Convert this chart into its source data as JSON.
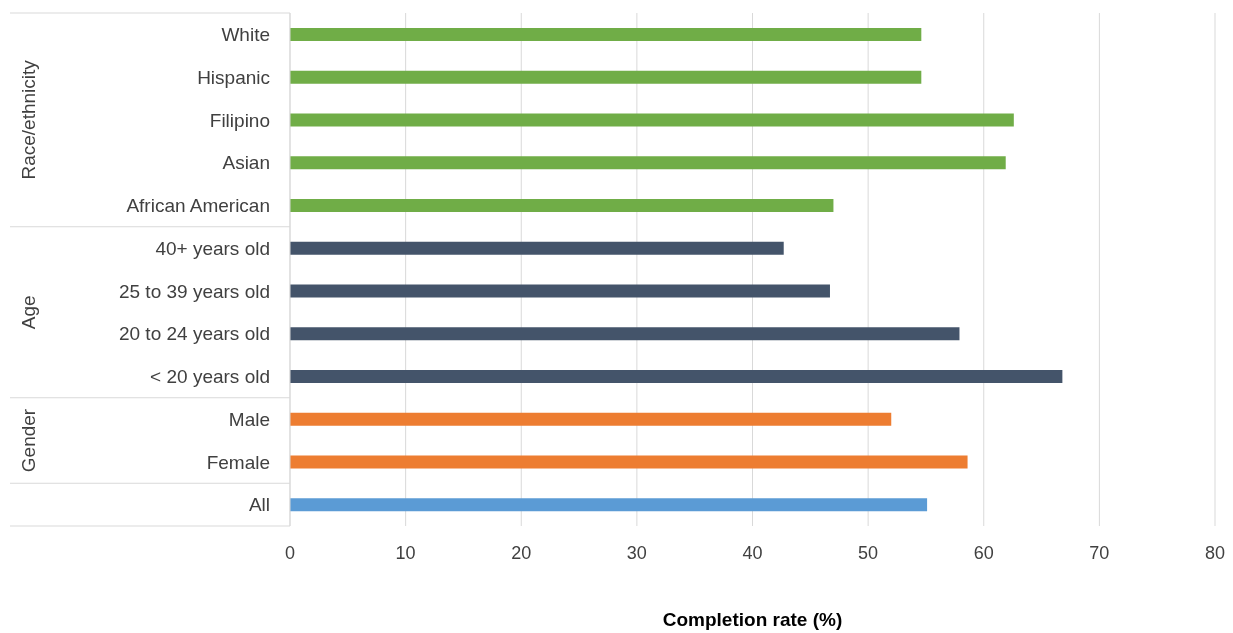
{
  "chart_data": {
    "type": "bar",
    "orientation": "horizontal",
    "xlabel": "Completion rate (%)",
    "categories": [
      "White",
      "Hispanic",
      "Filipino",
      "Asian",
      "African American",
      "40+ years old",
      "25 to 39 years old",
      "20 to 24 years old",
      "< 20 years old",
      "Male",
      "Female",
      "All"
    ],
    "values": [
      54.6,
      54.6,
      62.6,
      61.9,
      47.0,
      42.7,
      46.7,
      57.9,
      66.8,
      52.0,
      58.6,
      55.1
    ],
    "colors": [
      "#70ad47",
      "#70ad47",
      "#70ad47",
      "#70ad47",
      "#70ad47",
      "#44546a",
      "#44546a",
      "#44546a",
      "#44546a",
      "#ed7d31",
      "#ed7d31",
      "#5b9bd5"
    ],
    "xlim": [
      0,
      80
    ],
    "xticks": [
      0,
      10,
      20,
      30,
      40,
      50,
      60,
      70,
      80
    ],
    "annotations": [
      "Race/ethnicity",
      "Age",
      "Gender"
    ],
    "grid": "x"
  }
}
